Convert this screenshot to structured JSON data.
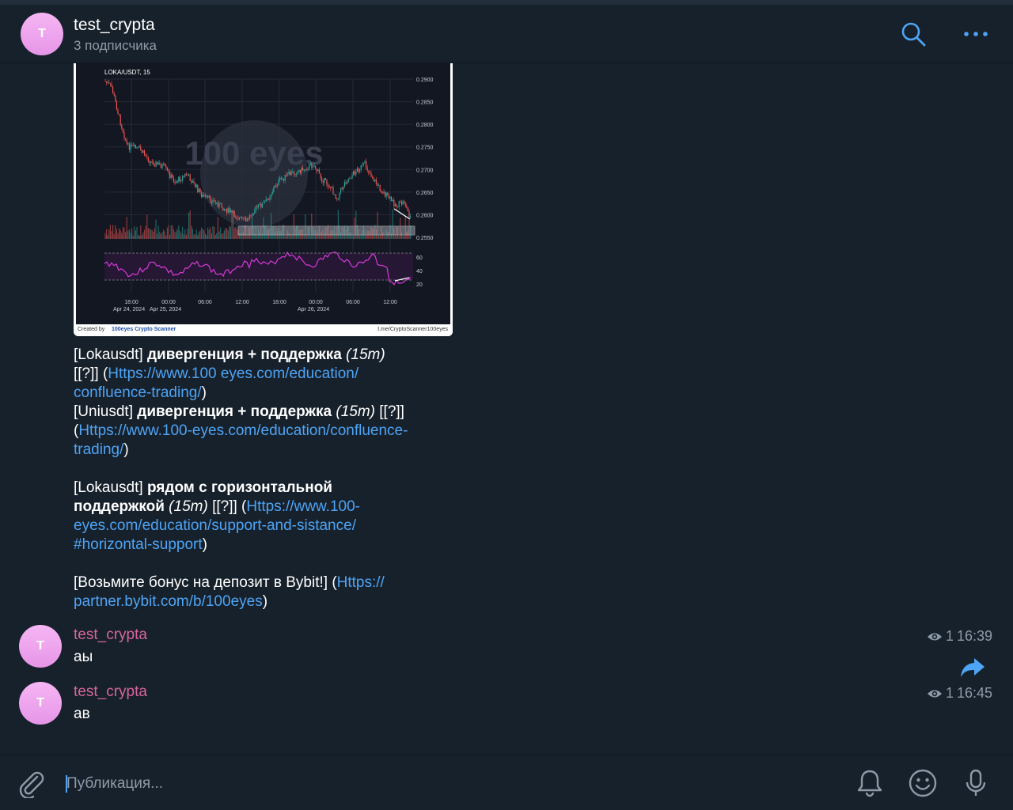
{
  "header": {
    "avatar_letter": "T",
    "title": "test_crypta",
    "subtitle": "3 подписчика"
  },
  "chart": {
    "symbol": "LOKA/USDT, 15",
    "watermark": "100 eyes",
    "price_ticks": [
      "0.2900",
      "0.2850",
      "0.2800",
      "0.2750",
      "0.2700",
      "0.2650",
      "0.2600",
      "0.2550"
    ],
    "rsi_ticks": [
      "60",
      "40",
      "20"
    ],
    "time_ticks": [
      "18:00",
      "00:00",
      "06:00",
      "12:00",
      "18:00",
      "00:00",
      "06:00",
      "12:00"
    ],
    "date_ticks": [
      "Apr 24, 2024",
      "Apr 25, 2024",
      "Apr 26, 2024"
    ],
    "footer_created": "Created by",
    "footer_brand": "100eyes Crypto Scanner",
    "footer_link": "t.me/CryptoScanner100eyes",
    "colors": {
      "up": "#26a69a",
      "down": "#ef5350",
      "rsi": "#d63ad6"
    }
  },
  "post": {
    "l1_prefix": "[Lokausdt]  ",
    "l1_bold": "дивергенция + поддержка",
    "l1_italic": "   (15m)",
    "l2_prefix": "[[?]] (",
    "l2_link": "Https://www.100 eyes.com/education/",
    "l3_link": "confluence-trading/",
    "l3_suffix": ")",
    "l4_prefix": "[Uniusdt]  ",
    "l4_bold": "дивергенция + поддержка",
    "l4_italic": "   (15m)",
    "l4_suffix": "   [[?]]",
    "l5_prefix": "(",
    "l5_link": "Https://www.100-eyes.com/education/confluence-",
    "l6_link": "trading/",
    "l6_suffix": ")",
    "l7_prefix": "[Lokausdt]  ",
    "l7_bold": "рядом с горизонтальной",
    "l8_bold": "поддержкой",
    "l8_italic": "   (15m)",
    "l8_mid": "   [[?]] (",
    "l8_link": "Https://www.100-",
    "l9_link": "eyes.com/education/support-and-sistance/",
    "l10_link": "#horizontal-support",
    "l10_suffix": ")",
    "l11_prefix": "[Возьмите бонус на депозит в Bybit!] (",
    "l11_link": "Https://",
    "l12_link": "partner.bybit.com/b/100eyes",
    "l12_suffix": ")"
  },
  "messages": [
    {
      "avatar_letter": "T",
      "author": "test_crypta",
      "text": "аы",
      "views": "1",
      "time": "16:39"
    },
    {
      "avatar_letter": "T",
      "author": "test_crypta",
      "text": "ав",
      "views": "1",
      "time": "16:45"
    }
  ],
  "composer": {
    "placeholder": "Публикация..."
  },
  "colors": {
    "accent": "#4ea4f6",
    "author": "#d7659d",
    "bg": "#17212b"
  }
}
